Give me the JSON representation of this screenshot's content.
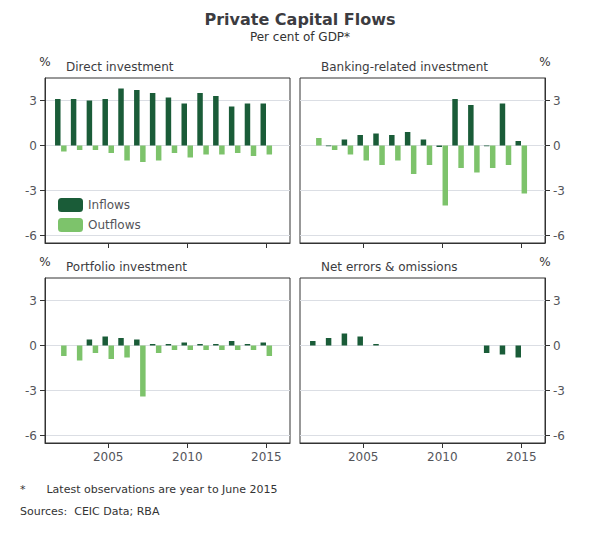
{
  "title": "Private Capital Flows",
  "subtitle": "Per cent of GDP*",
  "footnote": "*      Latest observations are year to June 2015",
  "sources": "Sources:  CEIC Data; RBA",
  "chart_data": [
    {
      "type": "bar",
      "title": "Direct investment",
      "x": [
        2002,
        2003,
        2004,
        2005,
        2006,
        2007,
        2008,
        2009,
        2010,
        2011,
        2012,
        2013,
        2014,
        2015
      ],
      "series": [
        {
          "name": "Inflows",
          "color": "#1a5c38",
          "values": [
            3.1,
            3.1,
            3.0,
            3.1,
            3.8,
            3.7,
            3.5,
            3.2,
            2.8,
            3.5,
            3.3,
            2.6,
            2.8,
            2.8
          ]
        },
        {
          "name": "Outflows",
          "color": "#7dc36b",
          "values": [
            -0.4,
            -0.3,
            -0.3,
            -0.5,
            -1.0,
            -1.1,
            -1.0,
            -0.5,
            -0.8,
            -0.6,
            -0.6,
            -0.5,
            -0.7,
            -0.6
          ]
        }
      ],
      "xlim": [
        2001.0,
        2016.5
      ],
      "xticks": [
        2005,
        2010,
        2015
      ],
      "ylim": [
        -6.5,
        4.5
      ],
      "yticks": [
        -6,
        -3,
        0,
        3
      ],
      "ylabel": "%",
      "grid": true,
      "legend": "lower left",
      "tick_labels": "y"
    },
    {
      "type": "bar",
      "title": "Banking-related investment",
      "x": [
        2002,
        2003,
        2004,
        2005,
        2006,
        2007,
        2008,
        2009,
        2010,
        2011,
        2012,
        2013,
        2014,
        2015
      ],
      "series": [
        {
          "name": "Inflows",
          "color": "#1a5c38",
          "values": [
            0.0,
            -0.05,
            0.4,
            0.7,
            0.8,
            0.7,
            0.9,
            0.4,
            -0.1,
            3.1,
            2.7,
            -0.05,
            2.8,
            0.3
          ]
        },
        {
          "name": "Outflows",
          "color": "#7dc36b",
          "values": [
            0.5,
            -0.3,
            -0.6,
            -1.0,
            -1.3,
            -1.0,
            -1.9,
            -1.3,
            -4.0,
            -1.5,
            -1.8,
            -1.5,
            -1.3,
            -3.2
          ]
        }
      ],
      "xlim": [
        2001.0,
        2016.5
      ],
      "xticks": [
        2005,
        2010,
        2015
      ],
      "ylim": [
        -6.5,
        4.5
      ],
      "yticks": [
        -6,
        -3,
        0,
        3
      ],
      "ylabel": "%",
      "grid": true,
      "legend": false,
      "tick_labels": "y"
    },
    {
      "type": "bar",
      "title": "Portfolio investment",
      "x": [
        2002,
        2003,
        2004,
        2005,
        2006,
        2007,
        2008,
        2009,
        2010,
        2011,
        2012,
        2013,
        2014,
        2015
      ],
      "series": [
        {
          "name": "Inflows",
          "color": "#1a5c38",
          "values": [
            0.0,
            0.0,
            0.4,
            0.6,
            0.5,
            0.4,
            0.1,
            0.1,
            0.2,
            0.1,
            0.1,
            0.3,
            0.1,
            0.2
          ]
        },
        {
          "name": "Outflows",
          "color": "#7dc36b",
          "values": [
            -0.7,
            -1.0,
            -0.5,
            -0.9,
            -0.8,
            -3.4,
            -0.5,
            -0.3,
            -0.3,
            -0.3,
            -0.3,
            -0.3,
            -0.3,
            -0.7
          ]
        }
      ],
      "xlim": [
        2001.0,
        2016.5
      ],
      "xticks": [
        2005,
        2010,
        2015
      ],
      "ylim": [
        -6.5,
        4.5
      ],
      "yticks": [
        -6,
        -3,
        0,
        3
      ],
      "ylabel": "%",
      "grid": true,
      "legend": false
    },
    {
      "type": "bar",
      "title": "Net errors & omissions",
      "x": [
        2002,
        2003,
        2004,
        2005,
        2006,
        2007,
        2008,
        2009,
        2010,
        2011,
        2012,
        2013,
        2014,
        2015
      ],
      "series": [
        {
          "name": "Inflows",
          "color": "#1a5c38",
          "values": [
            0.3,
            0.5,
            0.8,
            0.6,
            0.1,
            0.0,
            0.0,
            0.0,
            0.0,
            0.0,
            0.0,
            -0.5,
            -0.6,
            -0.8
          ]
        },
        {
          "name": "Outflows",
          "color": "#7dc36b",
          "values": [
            0.0,
            0.0,
            0.0,
            0.0,
            0.0,
            0.0,
            0.0,
            0.0,
            0.0,
            0.0,
            0.0,
            0.0,
            0.0,
            0.0
          ]
        }
      ],
      "xlim": [
        2001.0,
        2016.5
      ],
      "xticks": [
        2005,
        2010,
        2015
      ],
      "ylim": [
        -6.5,
        4.5
      ],
      "yticks": [
        -6,
        -3,
        0,
        3
      ],
      "ylabel": "%",
      "grid": true,
      "legend": false
    }
  ]
}
